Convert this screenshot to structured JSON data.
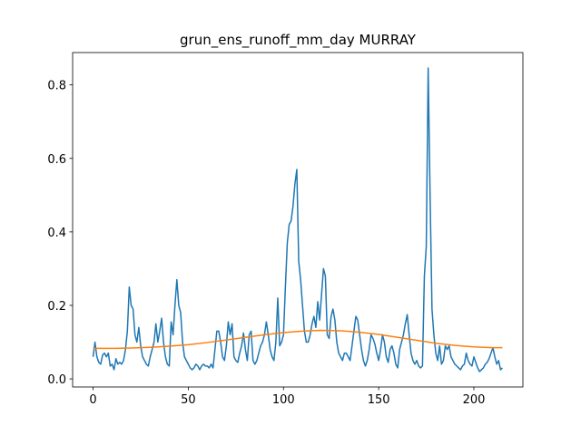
{
  "chart_data": {
    "type": "line",
    "title": "grun_ens_runoff_mm_day MURRAY",
    "xlim": [
      -10.75,
      225.75
    ],
    "xticks": [
      0,
      50,
      100,
      150,
      200
    ],
    "ylim": [
      -0.022,
      0.888
    ],
    "yticks": [
      {
        "value": 0,
        "label": "0.0"
      },
      0.2,
      0.4,
      0.6,
      0.8
    ],
    "series": [
      {
        "color": "#1f77b4",
        "x": [
          0,
          1,
          2,
          3,
          4,
          5,
          6,
          7,
          8,
          9,
          10,
          11,
          12,
          13,
          14,
          15,
          16,
          17,
          18,
          19,
          20,
          21,
          22,
          23,
          24,
          25,
          26,
          27,
          28,
          29,
          30,
          31,
          32,
          33,
          34,
          35,
          36,
          37,
          38,
          39,
          40,
          41,
          42,
          43,
          44,
          45,
          46,
          47,
          48,
          49,
          50,
          51,
          52,
          53,
          54,
          55,
          56,
          57,
          58,
          59,
          60,
          61,
          62,
          63,
          64,
          65,
          66,
          67,
          68,
          69,
          70,
          71,
          72,
          73,
          74,
          75,
          76,
          77,
          78,
          79,
          80,
          81,
          82,
          83,
          84,
          85,
          86,
          87,
          88,
          89,
          90,
          91,
          92,
          93,
          94,
          95,
          96,
          97,
          98,
          99,
          100,
          101,
          102,
          103,
          104,
          105,
          106,
          107,
          108,
          109,
          110,
          111,
          112,
          113,
          114,
          115,
          116,
          117,
          118,
          119,
          120,
          121,
          122,
          123,
          124,
          125,
          126,
          127,
          128,
          129,
          130,
          131,
          132,
          133,
          134,
          135,
          136,
          137,
          138,
          139,
          140,
          141,
          142,
          143,
          144,
          145,
          146,
          147,
          148,
          149,
          150,
          151,
          152,
          153,
          154,
          155,
          156,
          157,
          158,
          159,
          160,
          161,
          162,
          163,
          164,
          165,
          166,
          167,
          168,
          169,
          170,
          171,
          172,
          173,
          174,
          175,
          176,
          177,
          178,
          179,
          180,
          181,
          182,
          183,
          184,
          185,
          186,
          187,
          188,
          189,
          190,
          191,
          192,
          193,
          194,
          195,
          196,
          197,
          198,
          199,
          200,
          201,
          202,
          203,
          204,
          205,
          206,
          207,
          208,
          209,
          210,
          211,
          212,
          213,
          214,
          215
        ],
        "values": [
          0.06,
          0.1,
          0.06,
          0.045,
          0.04,
          0.065,
          0.07,
          0.06,
          0.07,
          0.035,
          0.04,
          0.025,
          0.055,
          0.04,
          0.045,
          0.04,
          0.05,
          0.08,
          0.13,
          0.25,
          0.2,
          0.19,
          0.12,
          0.1,
          0.14,
          0.09,
          0.06,
          0.05,
          0.04,
          0.035,
          0.06,
          0.08,
          0.1,
          0.15,
          0.1,
          0.13,
          0.165,
          0.1,
          0.06,
          0.04,
          0.035,
          0.155,
          0.12,
          0.2,
          0.27,
          0.2,
          0.18,
          0.1,
          0.06,
          0.05,
          0.04,
          0.03,
          0.025,
          0.03,
          0.04,
          0.035,
          0.025,
          0.035,
          0.04,
          0.035,
          0.035,
          0.03,
          0.04,
          0.03,
          0.08,
          0.13,
          0.13,
          0.1,
          0.06,
          0.05,
          0.09,
          0.155,
          0.12,
          0.15,
          0.06,
          0.05,
          0.045,
          0.07,
          0.09,
          0.125,
          0.08,
          0.05,
          0.12,
          0.13,
          0.05,
          0.04,
          0.05,
          0.07,
          0.09,
          0.1,
          0.12,
          0.155,
          0.12,
          0.08,
          0.06,
          0.05,
          0.1,
          0.22,
          0.09,
          0.1,
          0.12,
          0.25,
          0.37,
          0.42,
          0.43,
          0.47,
          0.53,
          0.57,
          0.32,
          0.27,
          0.2,
          0.13,
          0.1,
          0.1,
          0.12,
          0.15,
          0.17,
          0.14,
          0.21,
          0.16,
          0.23,
          0.3,
          0.28,
          0.12,
          0.11,
          0.17,
          0.19,
          0.16,
          0.1,
          0.07,
          0.06,
          0.05,
          0.07,
          0.07,
          0.06,
          0.05,
          0.09,
          0.13,
          0.17,
          0.16,
          0.12,
          0.08,
          0.05,
          0.035,
          0.05,
          0.08,
          0.12,
          0.11,
          0.095,
          0.07,
          0.05,
          0.08,
          0.12,
          0.1,
          0.06,
          0.045,
          0.08,
          0.09,
          0.07,
          0.04,
          0.03,
          0.08,
          0.1,
          0.12,
          0.15,
          0.175,
          0.12,
          0.07,
          0.05,
          0.04,
          0.05,
          0.035,
          0.03,
          0.035,
          0.28,
          0.36,
          0.846,
          0.5,
          0.19,
          0.12,
          0.07,
          0.05,
          0.09,
          0.04,
          0.05,
          0.09,
          0.08,
          0.09,
          0.06,
          0.05,
          0.04,
          0.035,
          0.03,
          0.025,
          0.035,
          0.04,
          0.07,
          0.05,
          0.04,
          0.035,
          0.06,
          0.045,
          0.03,
          0.02,
          0.025,
          0.03,
          0.04,
          0.045,
          0.055,
          0.07,
          0.085,
          0.06,
          0.04,
          0.05,
          0.025,
          0.03
        ]
      },
      {
        "color": "#ff7f0e",
        "x": [
          0,
          10,
          20,
          30,
          40,
          50,
          60,
          70,
          80,
          90,
          100,
          110,
          120,
          130,
          140,
          150,
          160,
          170,
          180,
          190,
          200,
          210,
          215
        ],
        "values": [
          0.083,
          0.083,
          0.084,
          0.086,
          0.089,
          0.093,
          0.099,
          0.106,
          0.113,
          0.12,
          0.126,
          0.13,
          0.132,
          0.131,
          0.127,
          0.121,
          0.113,
          0.105,
          0.097,
          0.091,
          0.087,
          0.085,
          0.085
        ]
      }
    ]
  }
}
